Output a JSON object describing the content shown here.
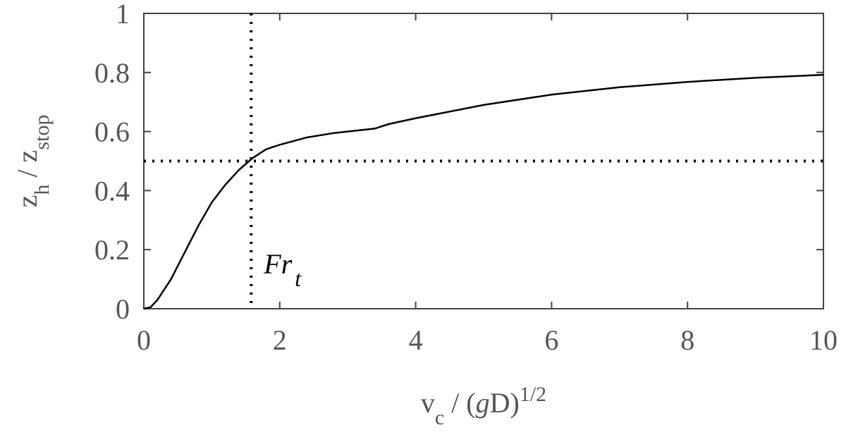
{
  "chart_data": {
    "type": "line",
    "xlabel": [
      {
        "text": "v"
      },
      {
        "text": "c",
        "sub": true
      },
      {
        "text": " / ("
      },
      {
        "text": "g",
        "italic": true
      },
      {
        "text": "D)"
      },
      {
        "text": "1/2",
        "sup": true
      }
    ],
    "ylabel": [
      {
        "text": "z"
      },
      {
        "text": "h",
        "sub": true
      },
      {
        "text": " / z"
      },
      {
        "text": "stop",
        "sub": true
      }
    ],
    "annotation": {
      "text": "Fr",
      "sub": "t"
    },
    "xlim": [
      0,
      10
    ],
    "xticks": [
      0,
      2,
      4,
      6,
      8,
      10
    ],
    "ylim": [
      0,
      1
    ],
    "yticks": [
      0,
      0.2,
      0.4,
      0.6,
      0.8,
      1
    ],
    "hline": 0.5,
    "vline": 1.58,
    "series": [
      {
        "color": "#000000",
        "x": [
          0,
          0.1,
          0.2,
          0.4,
          0.6,
          0.8,
          1.0,
          1.2,
          1.4,
          1.6,
          1.8,
          2.0,
          2.4,
          2.8,
          3.0,
          3.4,
          3.6,
          4,
          5,
          6,
          7,
          8,
          9,
          10
        ],
        "values": [
          0,
          0.005,
          0.03,
          0.1,
          0.19,
          0.28,
          0.36,
          0.42,
          0.47,
          0.51,
          0.54,
          0.555,
          0.58,
          0.595,
          0.6,
          0.61,
          0.625,
          0.645,
          0.69,
          0.725,
          0.75,
          0.768,
          0.782,
          0.792
        ]
      }
    ]
  }
}
